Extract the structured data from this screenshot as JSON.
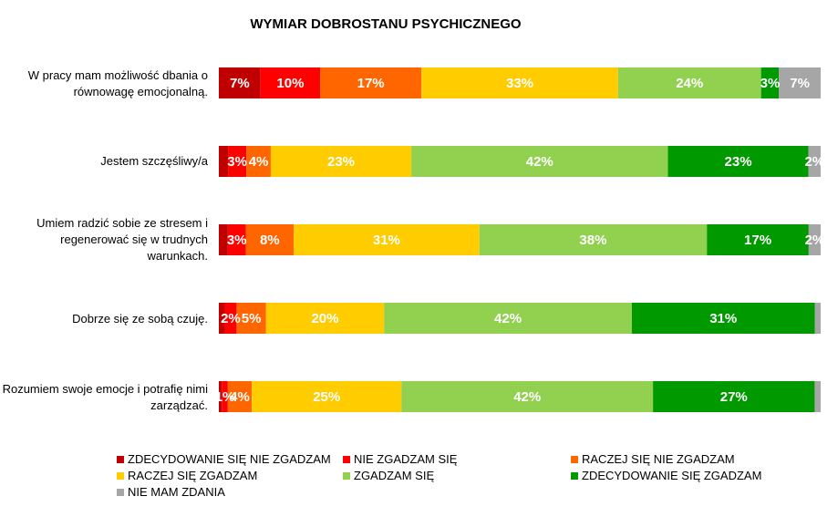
{
  "chart_data": {
    "type": "bar",
    "orientation": "horizontal-stacked-100",
    "title": "WYMIAR DOBROSTANU PSYCHICZNEGO",
    "categories": [
      "W pracy mam możliwość dbania o równowagę emocjonalną.",
      "Jestem szczęśliwy/a",
      "Umiem radzić sobie ze stresem i regenerować się w trudnych warunkach.",
      "Dobrze się ze sobą czuję.",
      "Rozumiem swoje emocje i potrafię nimi zarządzać."
    ],
    "series": [
      {
        "name": "ZDECYDOWANIE SIĘ NIE ZGADZAM",
        "color": "#C00000",
        "values": [
          7,
          1.5,
          1.5,
          1,
          0.5
        ],
        "labels": [
          "7%",
          "",
          "",
          "",
          ""
        ]
      },
      {
        "name": "NIE ZGADZAM SIĘ",
        "color": "#FF0000",
        "values": [
          10,
          3,
          3,
          2,
          1
        ],
        "labels": [
          "10%",
          "3%",
          "3%",
          "2%",
          "1%"
        ]
      },
      {
        "name": "RACZEJ SIĘ NIE ZGADZAM",
        "color": "#FF6600",
        "values": [
          17,
          4,
          8,
          5,
          4
        ],
        "labels": [
          "17%",
          "4%",
          "8%",
          "5%",
          "4%"
        ]
      },
      {
        "name": "RACZEJ SIĘ ZGADZAM",
        "color": "#FFCC00",
        "values": [
          33,
          23,
          31,
          20,
          25
        ],
        "labels": [
          "33%",
          "23%",
          "31%",
          "20%",
          "25%"
        ]
      },
      {
        "name": "ZGADZAM SIĘ",
        "color": "#92D050",
        "values": [
          24,
          42,
          38,
          42,
          42
        ],
        "labels": [
          "24%",
          "42%",
          "38%",
          "42%",
          "42%"
        ]
      },
      {
        "name": "ZDECYDOWANIE SIĘ ZGADZAM",
        "color": "#009900",
        "values": [
          3,
          23,
          17,
          31,
          27
        ],
        "labels": [
          "3%",
          "23%",
          "17%",
          "31%",
          "27%"
        ]
      },
      {
        "name": "NIE MAM ZDANIA",
        "color": "#A6A6A6",
        "values": [
          7,
          2,
          2,
          1,
          1
        ],
        "labels": [
          "7%",
          "2%",
          "2%",
          "",
          ""
        ]
      }
    ],
    "legend_position": "bottom",
    "grid": false
  }
}
